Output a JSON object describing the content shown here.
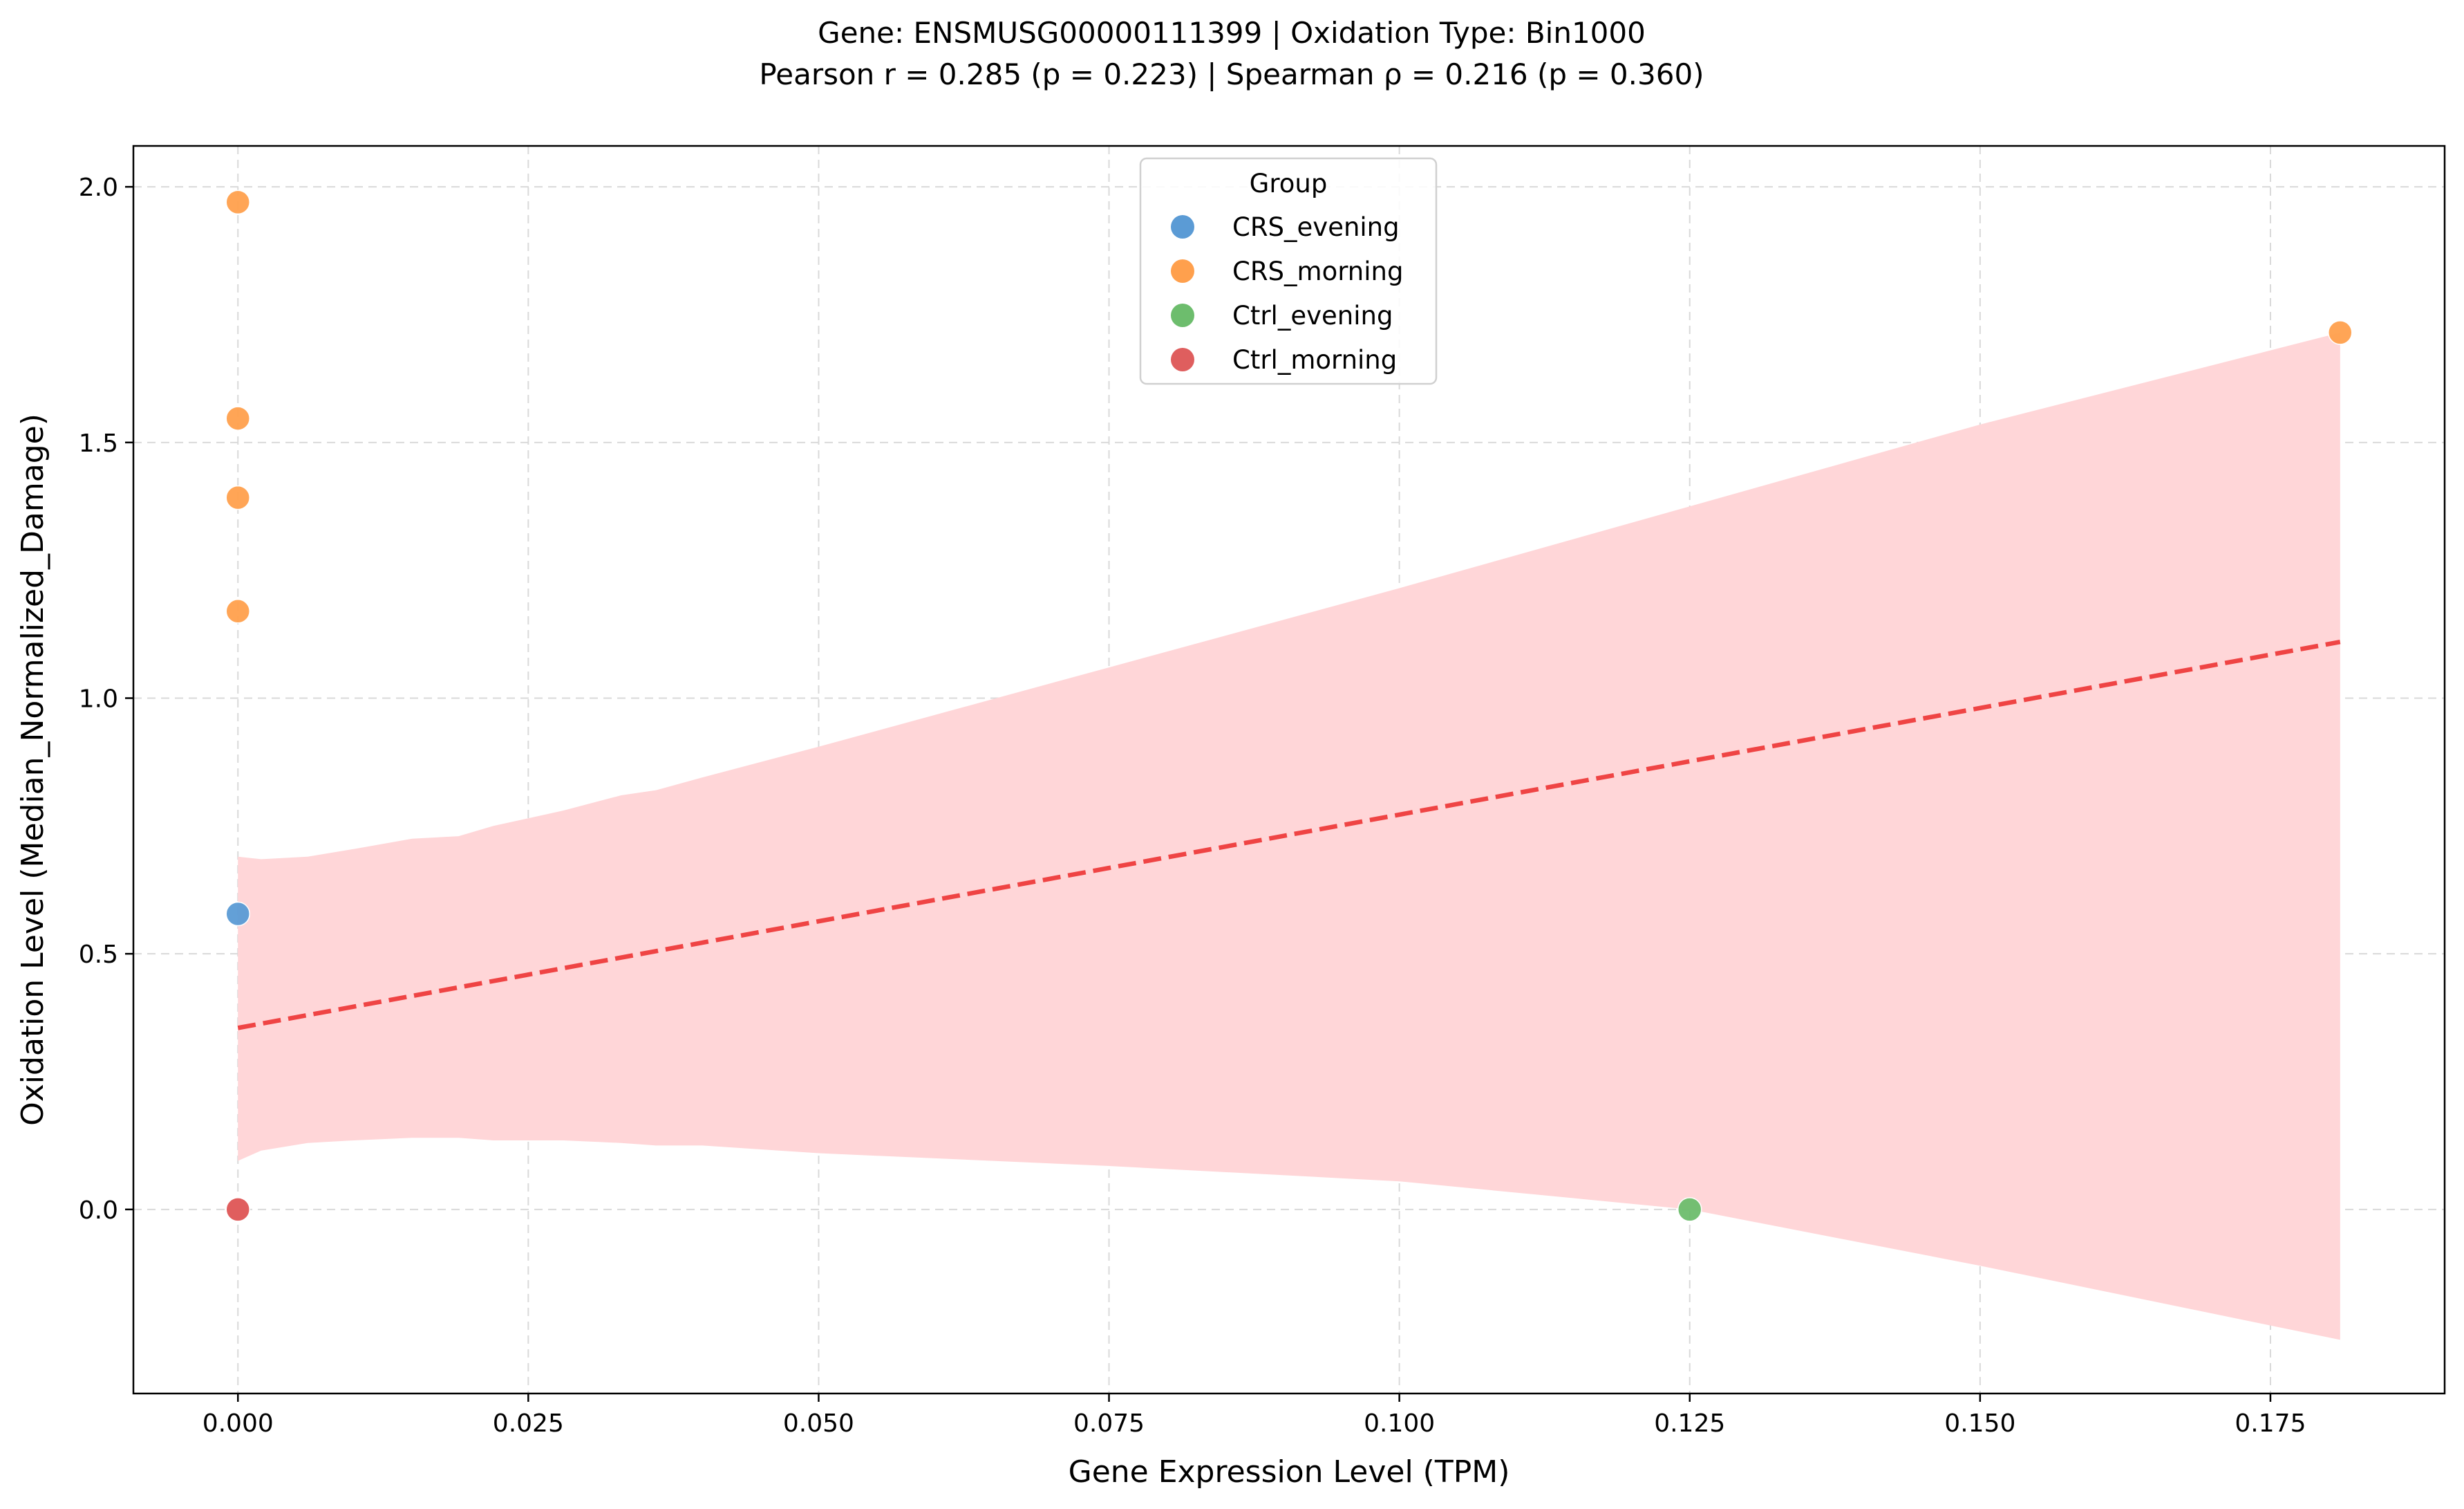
{
  "chart_data": {
    "type": "scatter",
    "title_line1": "Gene: ENSMUSG00000111399 | Oxidation Type: Bin1000",
    "title_line2": "Pearson r = 0.285 (p = 0.223) | Spearman ρ = 0.216 (p = 0.360)",
    "xlabel": "Gene Expression Level (TPM)",
    "ylabel": "Oxidation Level (Median_Normalized_Damage)",
    "xlim": [
      -0.009,
      0.19
    ],
    "ylim": [
      -0.36,
      2.08
    ],
    "grid": true,
    "x_ticks": [
      "0.000",
      "0.025",
      "0.050",
      "0.075",
      "0.100",
      "0.125",
      "0.150",
      "0.175"
    ],
    "x_tick_values": [
      0,
      0.025,
      0.05,
      0.075,
      0.1,
      0.125,
      0.15,
      0.175
    ],
    "y_ticks": [
      "0.0",
      "0.5",
      "1.0",
      "1.5",
      "2.0"
    ],
    "y_tick_values": [
      0,
      0.5,
      1.0,
      1.5,
      2.0
    ],
    "legend": {
      "title": "Group",
      "placement": "top-center",
      "entries": [
        {
          "label": "CRS_evening",
          "color": "#5b9bd5"
        },
        {
          "label": "CRS_morning",
          "color": "#ffa04d"
        },
        {
          "label": "Ctrl_evening",
          "color": "#6dbd6d"
        },
        {
          "label": "Ctrl_morning",
          "color": "#df5e5e"
        }
      ]
    },
    "series": [
      {
        "name": "CRS_evening",
        "color": "#5b9bd5",
        "points": [
          [
            0.0,
            0.578
          ]
        ]
      },
      {
        "name": "CRS_morning",
        "color": "#ffa04d",
        "points": [
          [
            0.0,
            1.97
          ],
          [
            0.0,
            1.547
          ],
          [
            0.0,
            1.392
          ],
          [
            0.0,
            1.17
          ],
          [
            0.181,
            1.715
          ]
        ]
      },
      {
        "name": "Ctrl_evening",
        "color": "#6dbd6d",
        "points": [
          [
            0.125,
            0.0
          ]
        ]
      },
      {
        "name": "Ctrl_morning",
        "color": "#df5e5e",
        "points": [
          [
            0.0,
            0.0
          ],
          [
            0.0,
            0.0
          ]
        ]
      }
    ],
    "regression": {
      "color": "#ef4444",
      "style": "dashed",
      "line": [
        [
          0.0,
          0.355
        ],
        [
          0.181,
          1.11
        ]
      ],
      "ci_color": "#ffd6d8",
      "ci_x": [
        0,
        0.002,
        0.006,
        0.01,
        0.015,
        0.019,
        0.022,
        0.028,
        0.033,
        0.036,
        0.04,
        0.05,
        0.075,
        0.1,
        0.125,
        0.15,
        0.181
      ],
      "ci_upper": [
        0.69,
        0.685,
        0.69,
        0.705,
        0.725,
        0.73,
        0.75,
        0.78,
        0.81,
        0.82,
        0.845,
        0.905,
        1.06,
        1.215,
        1.375,
        1.535,
        1.715
      ],
      "ci_lower": [
        0.095,
        0.115,
        0.13,
        0.135,
        0.14,
        0.14,
        0.135,
        0.135,
        0.13,
        0.125,
        0.125,
        0.11,
        0.085,
        0.055,
        0.0,
        -0.11,
        -0.255
      ]
    }
  }
}
